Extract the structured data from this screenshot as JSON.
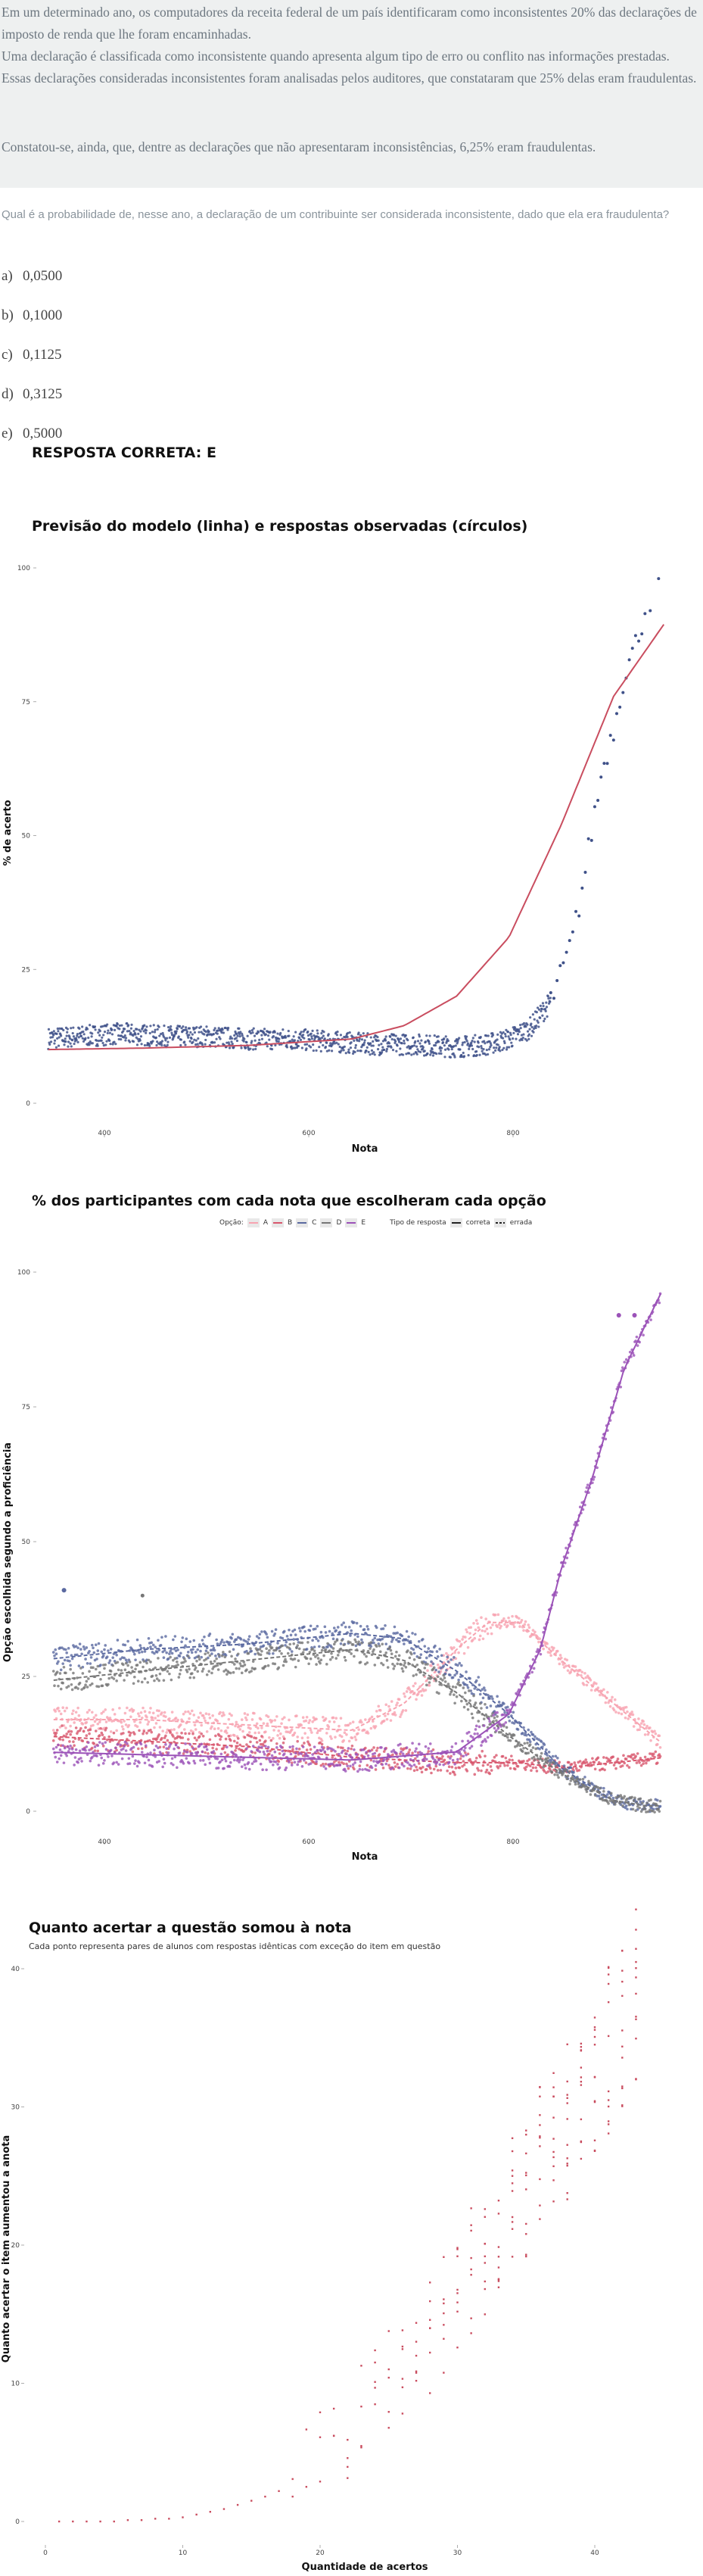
{
  "question": {
    "paragraphs": [
      "Em um determinado ano, os computadores da receita federal de um país identificaram como inconsistentes 20% das declarações de imposto de renda que lhe foram encaminhadas.",
      "Uma declaração é classificada como inconsistente quando apresenta algum tipo de erro ou conflito nas informações prestadas. Essas declarações consideradas inconsistentes foram analisadas pelos auditores, que constataram que 25% delas eram fraudulentas.",
      "Constatou-se, ainda, que, dentre as declarações que não apresentaram inconsistências, 6,25% eram fraudulentas."
    ],
    "prompt": "Qual é a probabilidade de, nesse ano, a declaração de um contribuinte ser considerada inconsistente, dado que ela era fraudulenta?",
    "alternatives": [
      {
        "letter": "a)",
        "text": "0,0500"
      },
      {
        "letter": "b)",
        "text": "0,1000"
      },
      {
        "letter": "c)",
        "text": "0,1125"
      },
      {
        "letter": "d)",
        "text": "0,3125"
      },
      {
        "letter": "e)",
        "text": "0,5000"
      }
    ],
    "answer": "RESPOSTA CORRETA: E"
  },
  "chart_data": [
    {
      "type": "scatter",
      "title": "Previsão do modelo (linha) e respostas observadas (círculos)",
      "xlabel": "Nota",
      "ylabel": "% de acerto",
      "yticks": [
        0,
        25,
        50,
        75,
        100
      ],
      "xticks": [
        "400",
        "600",
        "800"
      ],
      "xlim": [
        300,
        900
      ],
      "ylim": [
        0,
        100
      ],
      "series": [
        {
          "role": "observed",
          "color": "#3f5189",
          "x": [
            300,
            340,
            380,
            420,
            460,
            500,
            540,
            580,
            620,
            660,
            700,
            730,
            750,
            770,
            790,
            800,
            810,
            820,
            830,
            840,
            850,
            860,
            870,
            880,
            890
          ],
          "y": [
            12,
            12.5,
            13,
            12.5,
            12.5,
            12,
            12,
            11.5,
            11,
            11,
            10.5,
            11,
            12,
            14,
            19,
            24,
            30,
            40,
            52,
            63,
            70,
            80,
            85,
            92,
            92
          ]
        },
        {
          "role": "model",
          "color": "#c94d5f",
          "x": [
            300,
            400,
            500,
            600,
            650,
            700,
            750,
            800,
            850,
            900
          ],
          "y": [
            10,
            10.3,
            10.8,
            12,
            14.5,
            20,
            31,
            52,
            76,
            90
          ]
        }
      ]
    },
    {
      "type": "scatter",
      "title": "% dos participantes com cada nota que escolheram cada opção",
      "xlabel": "Nota",
      "ylabel": "Opção escolhida segundo a proficiência",
      "yticks": [
        0,
        25,
        50,
        75,
        100
      ],
      "xticks": [
        "400",
        "600",
        "800"
      ],
      "xlim": [
        300,
        900
      ],
      "ylim": [
        0,
        100
      ],
      "legend": {
        "option_label": "Opção:",
        "options": [
          "A",
          "B",
          "C",
          "D",
          "E"
        ],
        "type_label": "Tipo de resposta",
        "types": [
          "correta",
          "errada"
        ]
      },
      "series": [
        {
          "name": "A",
          "color": "#f7a3b0",
          "x": [
            300,
            400,
            500,
            600,
            650,
            700,
            730,
            760,
            800,
            850,
            900
          ],
          "y": [
            17,
            17,
            16,
            15,
            20,
            30,
            35,
            35,
            28,
            20,
            12
          ]
        },
        {
          "name": "B",
          "color": "#d8566d",
          "x": [
            300,
            400,
            500,
            600,
            700,
            760,
            800,
            850,
            900
          ],
          "y": [
            14,
            13,
            12,
            10,
            9,
            9,
            8,
            9,
            10
          ]
        },
        {
          "name": "C",
          "color": "#5a69a0",
          "x": [
            300,
            400,
            500,
            600,
            650,
            700,
            750,
            800,
            850,
            880
          ],
          "y": [
            28,
            30,
            31,
            33,
            32,
            26,
            18,
            8,
            2,
            1
          ]
        },
        {
          "name": "D",
          "color": "#767676",
          "x": [
            300,
            400,
            500,
            600,
            650,
            700,
            750,
            800,
            850,
            880
          ],
          "y": [
            24,
            26,
            28,
            30,
            28,
            22,
            14,
            7,
            2,
            1
          ]
        },
        {
          "name": "E",
          "color": "#9b52b8",
          "x": [
            300,
            400,
            500,
            600,
            700,
            750,
            780,
            800,
            830,
            860,
            900
          ],
          "y": [
            11,
            10.5,
            10,
            9.5,
            11,
            18,
            30,
            45,
            62,
            82,
            98
          ]
        }
      ]
    },
    {
      "type": "scatter",
      "title": "Quanto acertar a questão somou à nota",
      "subtitle": "Cada ponto representa pares de alunos com respostas idênticas com exceção do item em questão",
      "xlabel": "Quantidade de acertos",
      "ylabel": "Quanto acertar o item aumentou a anota",
      "yticks": [
        0,
        10,
        20,
        30,
        40
      ],
      "xticks": [
        "0",
        "10",
        "20",
        "30",
        "40"
      ],
      "xlim": [
        0,
        45
      ],
      "ylim": [
        0,
        40
      ],
      "series": [
        {
          "color": "#c94d5f",
          "x": [
            1,
            2,
            3,
            4,
            5,
            6,
            7,
            8,
            9,
            10,
            11,
            12,
            13,
            14,
            15,
            16,
            17,
            18,
            19,
            20,
            21,
            22,
            23,
            24,
            25,
            26,
            27,
            28,
            29,
            30,
            31,
            32,
            33,
            34,
            35,
            36,
            37,
            38,
            39,
            40,
            41,
            42,
            43
          ],
          "y": [
            0,
            0,
            0,
            0,
            0,
            0.1,
            0.1,
            0.2,
            0.2,
            0.3,
            0.5,
            0.7,
            0.9,
            1.2,
            1.5,
            1.8,
            2.2,
            2.8,
            3.5,
            4.5,
            5.5,
            6.5,
            7.5,
            9,
            10.5,
            11.5,
            12.5,
            13.5,
            15,
            16.5,
            18,
            19.5,
            21,
            22.5,
            24,
            26,
            27,
            29,
            30.5,
            32,
            34,
            36,
            38
          ]
        }
      ]
    }
  ]
}
